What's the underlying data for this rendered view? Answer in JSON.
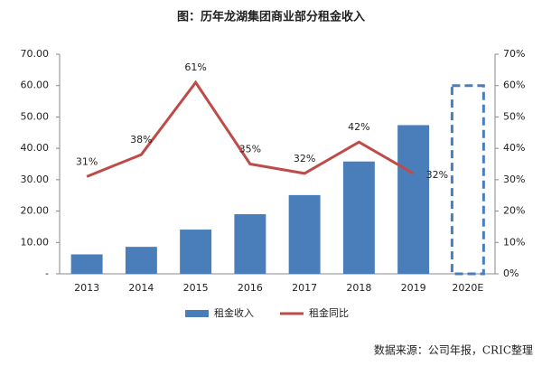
{
  "chart_data": {
    "type": "bar_line",
    "title": "图：历年龙湖集团商业部分租金收入",
    "categories": [
      "2013",
      "2014",
      "2015",
      "2016",
      "2017",
      "2018",
      "2019",
      "2020E"
    ],
    "series": [
      {
        "name": "租金收入",
        "type": "bar",
        "color": "#4a7ebb",
        "values": [
          6.2,
          8.6,
          14.1,
          19.0,
          25.1,
          35.8,
          47.4,
          60
        ],
        "styles": [
          "solid",
          "solid",
          "solid",
          "solid",
          "solid",
          "solid",
          "solid",
          "dashed"
        ]
      },
      {
        "name": "租金同比",
        "type": "line",
        "axis": "y2",
        "color": "#be4b48",
        "values": [
          31,
          38,
          61,
          35,
          32,
          42,
          32,
          null
        ],
        "value_labels": [
          "31%",
          "38%",
          "61%",
          "35%",
          "32%",
          "42%",
          "32%",
          null
        ]
      }
    ],
    "ylim": [
      0,
      70
    ],
    "yticks": [
      {
        "value": 0,
        "label": "-"
      },
      {
        "value": 10,
        "label": "10.00"
      },
      {
        "value": 20,
        "label": "20.00"
      },
      {
        "value": 30,
        "label": "30.00"
      },
      {
        "value": 40,
        "label": "40.00"
      },
      {
        "value": 50,
        "label": "50.00"
      },
      {
        "value": 60,
        "label": "60.00"
      },
      {
        "value": 70,
        "label": "70.00"
      }
    ],
    "y2lim": [
      0,
      70
    ],
    "y2ticks": [
      {
        "value": 0,
        "label": "0%"
      },
      {
        "value": 10,
        "label": "10%"
      },
      {
        "value": 20,
        "label": "20%"
      },
      {
        "value": 30,
        "label": "30%"
      },
      {
        "value": 40,
        "label": "40%"
      },
      {
        "value": 50,
        "label": "50%"
      },
      {
        "value": 60,
        "label": "60%"
      },
      {
        "value": 70,
        "label": "70%"
      }
    ],
    "legend": "bottom",
    "source": "数据来源：公司年报，CRIC整理"
  }
}
